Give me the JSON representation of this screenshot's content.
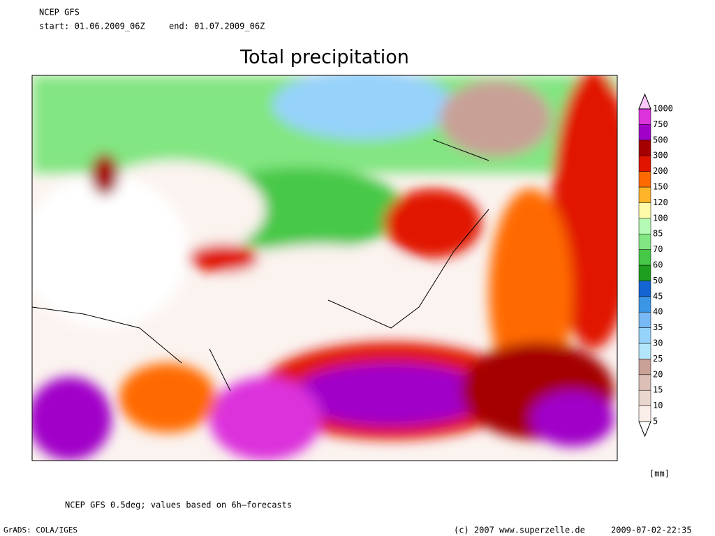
{
  "header": {
    "model": "NCEP GFS",
    "start": "start: 01.06.2009_06Z",
    "end": "end: 01.07.2009_06Z"
  },
  "title": "Total precipitation",
  "legend": {
    "unit": "[mm]",
    "levels": [
      "5",
      "10",
      "15",
      "20",
      "25",
      "30",
      "35",
      "40",
      "45",
      "50",
      "60",
      "70",
      "85",
      "100",
      "120",
      "150",
      "200",
      "300",
      "500",
      "750",
      "1000"
    ],
    "colors": [
      "#faeee8",
      "#ead6ce",
      "#dcc0b8",
      "#c8a096",
      "#b4e6fa",
      "#96d2fa",
      "#78b9f5",
      "#3c96e6",
      "#1464d2",
      "#1e9e1e",
      "#46c846",
      "#82e682",
      "#b4fab4",
      "#fffaaa",
      "#ffb428",
      "#ff6a00",
      "#e11400",
      "#a50000",
      "#a000c8",
      "#dc32dc",
      "#ffc8ff"
    ]
  },
  "footer": {
    "note": "NCEP GFS 0.5deg; values based on 6h–forecasts",
    "software": "GrADS: COLA/IGES",
    "copyright": "(c) 2007 www.superzelle.de",
    "timestamp": "2009-07-02-22:35"
  }
}
